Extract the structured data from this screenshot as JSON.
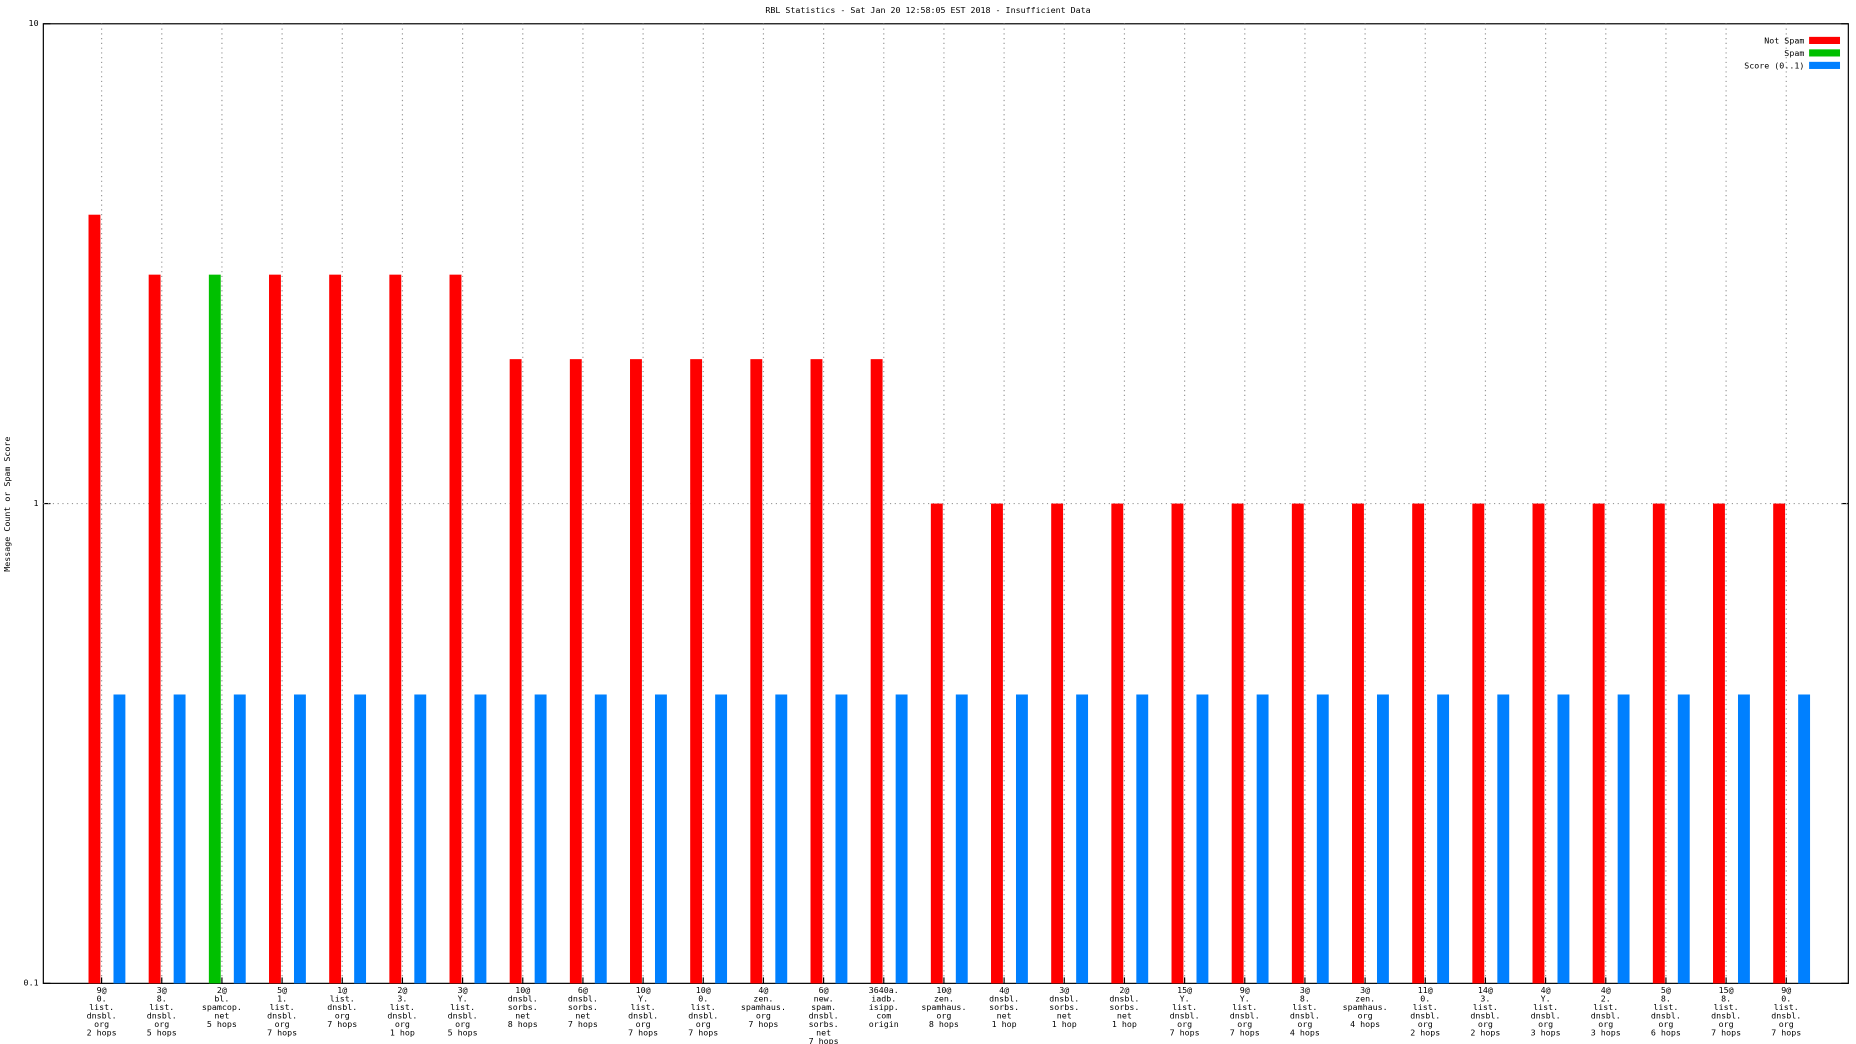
{
  "chart_data": {
    "type": "bar",
    "title": "RBL Statistics - Sat Jan 20 12:58:05 EST 2018 - Insufficient Data",
    "y_label": "Message Count or Spam Score",
    "log_scale": true,
    "grid": true,
    "legend_position": "top-right",
    "ylim": [
      0.1,
      10
    ],
    "yticks": [
      0.1,
      1,
      10
    ],
    "categories": [
      "9@\n0.\nlist.\ndnsbl.\norg\n2 hops",
      "3@\n8.\nlist.\ndnsbl.\norg\n5 hops",
      "2@\nbl.\nspamcop.\nnet\n5 hops",
      "5@\n1.\nlist.\ndnsbl.\norg\n7 hops",
      "1@\nlist.\ndnsbl.\norg\n7 hops",
      "2@\n3.\nlist.\ndnsbl.\norg\n1 hop",
      "3@\nY.\nlist.\ndnsbl.\norg\n5 hops",
      "10@\ndnsbl.\nsorbs.\nnet\n8 hops",
      "6@\ndnsbl.\nsorbs.\nnet\n7 hops",
      "10@\nY.\nlist.\ndnsbl.\norg\n7 hops",
      "10@\n0.\nlist.\ndnsbl.\norg\n7 hops",
      "4@\nzen.\nspamhaus.\norg\n7 hops",
      "6@\nnew.\nspam.\ndnsbl.\nsorbs.\nnet\n7 hops",
      "3640a.\niadb.\nisipp.\ncom\norigin",
      "10@\nzen.\nspamhaus.\norg\n8 hops",
      "4@\ndnsbl.\nsorbs.\nnet\n1 hop",
      "3@\ndnsbl.\nsorbs.\nnet\n1 hop",
      "2@\ndnsbl.\nsorbs.\nnet\n1 hop",
      "15@\nY.\nlist.\ndnsbl.\norg\n7 hops",
      "9@\nY.\nlist.\ndnsbl.\norg\n7 hops",
      "3@\n8.\nlist.\ndnsbl.\norg\n4 hops",
      "3@\nzen.\nspamhaus.\norg\n4 hops",
      "11@\n0.\nlist.\ndnsbl.\norg\n2 hops",
      "14@\n3.\nlist.\ndnsbl.\norg\n2 hops",
      "4@\nY.\nlist.\ndnsbl.\norg\n3 hops",
      "4@\n2.\nlist.\ndnsbl.\norg\n3 hops",
      "5@\n8.\nlist.\ndnsbl.\norg\n6 hops",
      "15@\n8.\nlist.\ndnsbl.\norg\n7 hops",
      "9@\n0.\nlist.\ndnsbl.\norg\n7 hops"
    ],
    "series": [
      {
        "name": "Not Spam",
        "color": "#ff0000",
        "values": [
          4,
          3,
          null,
          3,
          3,
          3,
          3,
          2,
          2,
          2,
          2,
          2,
          2,
          2,
          1,
          1,
          1,
          1,
          1,
          1,
          1,
          1,
          1,
          1,
          1,
          1,
          1,
          1,
          1
        ]
      },
      {
        "name": "Spam",
        "color": "#00c000",
        "values": [
          null,
          null,
          3,
          null,
          null,
          null,
          null,
          null,
          null,
          null,
          null,
          null,
          null,
          null,
          null,
          null,
          null,
          null,
          null,
          null,
          null,
          null,
          null,
          null,
          null,
          null,
          null,
          null,
          null
        ]
      },
      {
        "name": "Score (0..1)",
        "color": "#0080ff",
        "values": [
          0.4,
          0.4,
          0.4,
          0.4,
          0.4,
          0.4,
          0.4,
          0.4,
          0.4,
          0.4,
          0.4,
          0.4,
          0.4,
          0.4,
          0.4,
          0.4,
          0.4,
          0.4,
          0.4,
          0.4,
          0.4,
          0.4,
          0.4,
          0.4,
          0.4,
          0.4,
          0.4,
          0.4,
          0.4
        ]
      }
    ]
  }
}
